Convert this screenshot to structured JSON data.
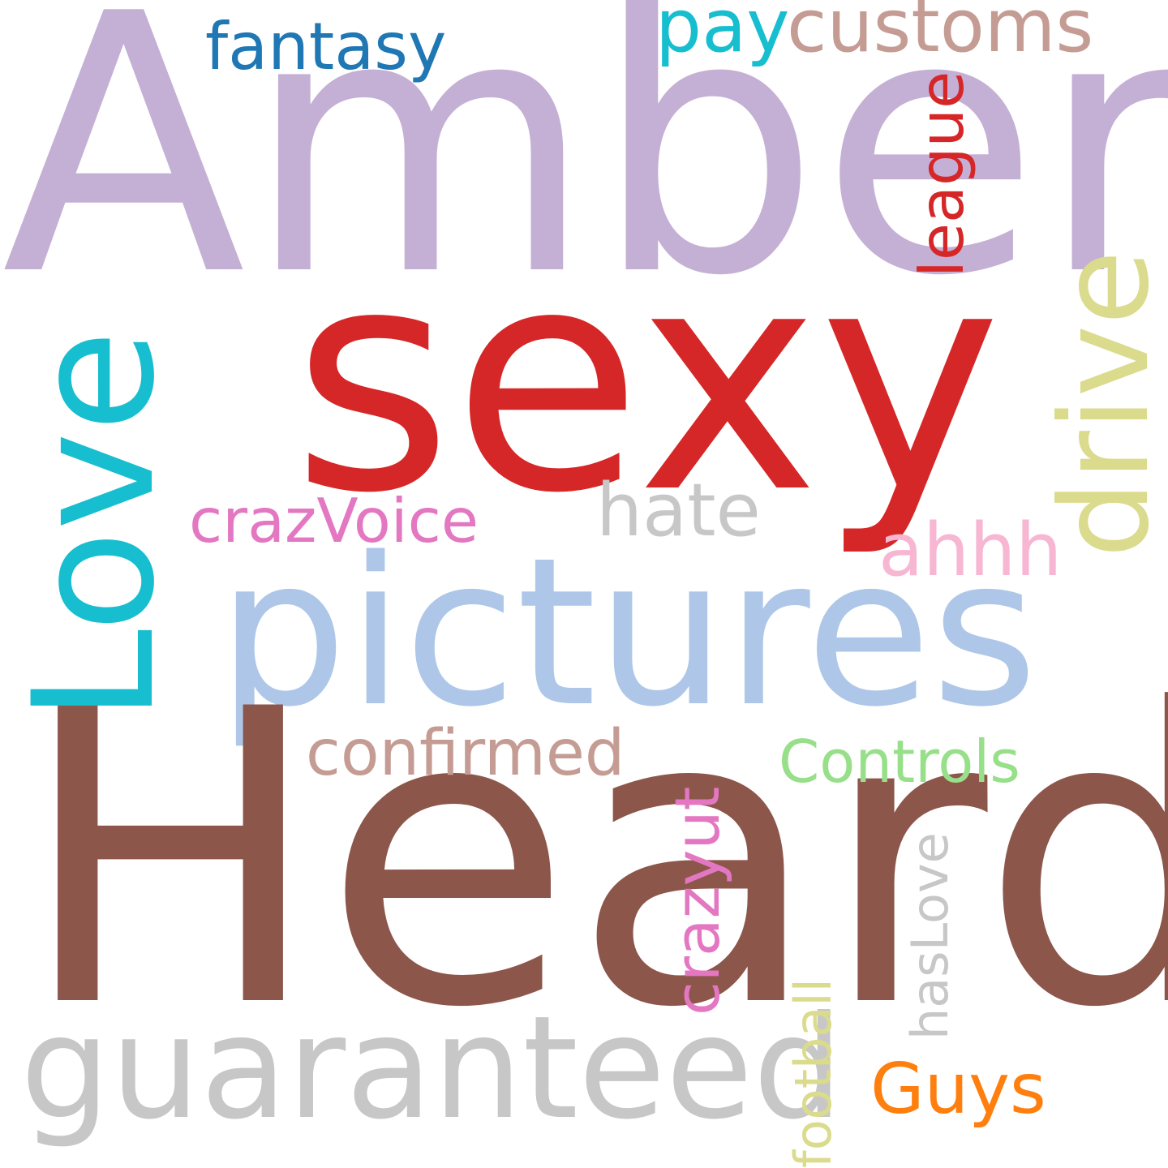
{
  "words": {
    "amber": {
      "text": "Amber",
      "color": "#c5b0d5",
      "orientation": "horizontal"
    },
    "sexy": {
      "text": "sexy",
      "color": "#d62728",
      "orientation": "horizontal"
    },
    "pictures": {
      "text": "pictures",
      "color": "#aec7e8",
      "orientation": "horizontal"
    },
    "heard": {
      "text": "Heard",
      "color": "#8c564b",
      "orientation": "horizontal"
    },
    "love": {
      "text": "Love",
      "color": "#17becf",
      "orientation": "vertical"
    },
    "drive": {
      "text": "drive",
      "color": "#dbdb8d",
      "orientation": "vertical"
    },
    "guaranteed": {
      "text": "guaranteed",
      "color": "#c7c7c7",
      "orientation": "horizontal"
    },
    "fantasy": {
      "text": "fantasy",
      "color": "#1f77b4",
      "orientation": "horizontal"
    },
    "pay": {
      "text": "pay",
      "color": "#17becf",
      "orientation": "horizontal"
    },
    "customs": {
      "text": "customs",
      "color": "#c49c94",
      "orientation": "horizontal"
    },
    "league": {
      "text": "league",
      "color": "#d62728",
      "orientation": "vertical"
    },
    "crazvoice": {
      "text": "crazVoice",
      "color": "#e377c2",
      "orientation": "horizontal"
    },
    "hate": {
      "text": "hate",
      "color": "#c7c7c7",
      "orientation": "horizontal"
    },
    "ahhh": {
      "text": "ahhh",
      "color": "#f7b6d2",
      "orientation": "horizontal"
    },
    "confirmed": {
      "text": "confirmed",
      "color": "#c49c94",
      "orientation": "horizontal"
    },
    "controls": {
      "text": "Controls",
      "color": "#98df8a",
      "orientation": "horizontal"
    },
    "crazyut": {
      "text": "crazyut",
      "color": "#e377c2",
      "orientation": "vertical"
    },
    "haslove": {
      "text": "hasLove",
      "color": "#c7c7c7",
      "orientation": "vertical"
    },
    "football": {
      "text": "football",
      "color": "#dbdb8d",
      "orientation": "vertical"
    },
    "guys": {
      "text": "Guys",
      "color": "#ff7f0e",
      "orientation": "horizontal"
    }
  },
  "background": "#ffffff"
}
